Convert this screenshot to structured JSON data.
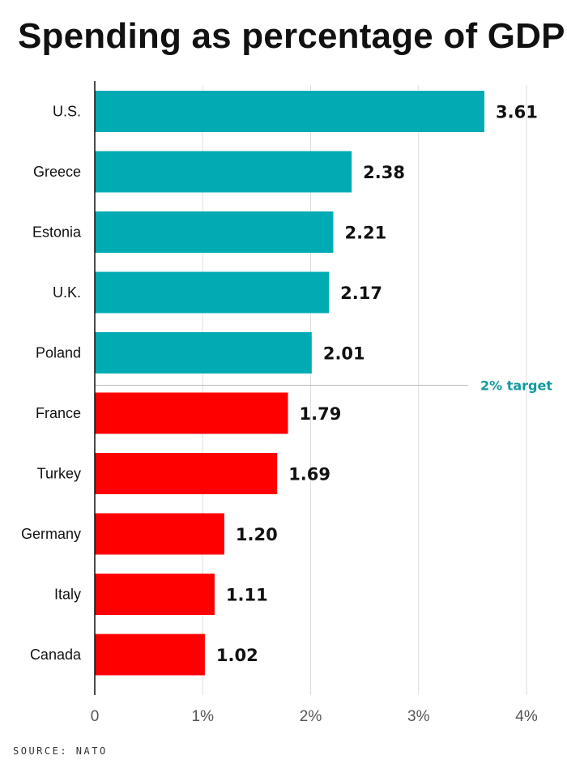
{
  "chart_data": {
    "type": "bar",
    "orientation": "horizontal",
    "title": "Spending as percentage of GDP",
    "categories": [
      "U.S.",
      "Greece",
      "Estonia",
      "U.K.",
      "Poland",
      "France",
      "Turkey",
      "Germany",
      "Italy",
      "Canada"
    ],
    "values": [
      3.61,
      2.38,
      2.21,
      2.17,
      2.01,
      1.79,
      1.69,
      1.2,
      1.11,
      1.02
    ],
    "value_labels": [
      "3.61",
      "2.38",
      "2.21",
      "2.17",
      "2.01",
      "1.79",
      "1.69",
      "1.20",
      "1.11",
      "1.02"
    ],
    "xlim": [
      0,
      4
    ],
    "x_ticks": [
      0,
      1,
      2,
      3,
      4
    ],
    "x_tick_labels": [
      "0",
      "1%",
      "2%",
      "3%",
      "4%"
    ],
    "grid": "vertical",
    "reference_line": {
      "after_category_index": 4,
      "label": "2% target",
      "color": "#119a9f"
    },
    "colors": {
      "above_target": "#00abb3",
      "below_target": "#ff0000"
    }
  },
  "source": "SOURCE: NATO"
}
